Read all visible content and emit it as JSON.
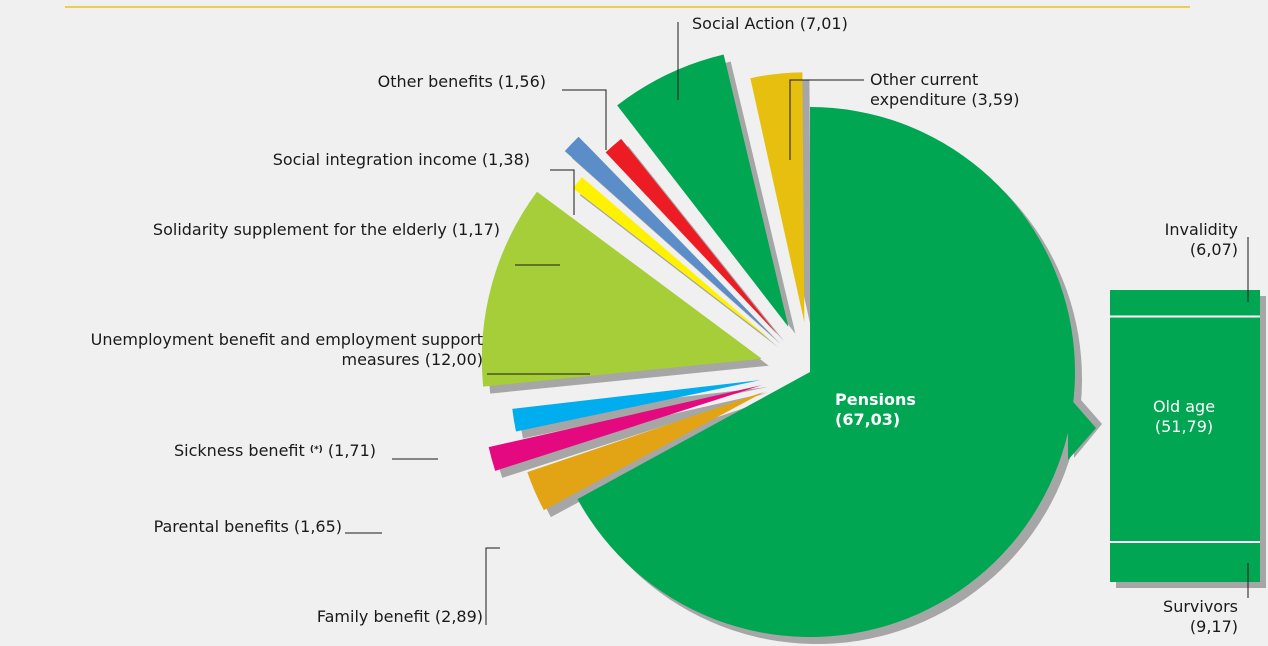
{
  "colors": {
    "background": "#f0f0f0",
    "top_rule": "#e8c21a",
    "shadow": "#a6a6a6",
    "leader": "#1a1a1a"
  },
  "chart_data": {
    "type": "pie",
    "unit": "%",
    "slices": [
      {
        "key": "pensions",
        "name": "Pensions",
        "value": 67.03,
        "value_label": "(67,03)",
        "color": "#00a651"
      },
      {
        "key": "family",
        "name": "Family benefit",
        "value": 2.89,
        "value_label": "(2,89)",
        "color": "#e2a414"
      },
      {
        "key": "parental",
        "name": "Parental benefits",
        "value": 1.65,
        "value_label": "(1,65)",
        "color": "#e5097f"
      },
      {
        "key": "sickness",
        "name": "Sickness benefit",
        "note": "(*)",
        "value": 1.71,
        "value_label": "(1,71)",
        "color": "#00adef"
      },
      {
        "key": "unemployment",
        "name": "Unemployment benefit and employment support",
        "name_line2": "measures",
        "value": 12.0,
        "value_label": "(12,00)",
        "color": "#a6ce39"
      },
      {
        "key": "solidarity",
        "name": "Solidarity supplement for the elderly",
        "value": 1.17,
        "value_label": "(1,17)",
        "color": "#fff200"
      },
      {
        "key": "integration",
        "name": "Social integration income",
        "value": 1.38,
        "value_label": "(1,38)",
        "color": "#5b8ec9"
      },
      {
        "key": "other_benefits",
        "name": "Other benefits",
        "value": 1.56,
        "value_label": "(1,56)",
        "color": "#ed1c24"
      },
      {
        "key": "social_action",
        "name": "Social Action",
        "value": 7.01,
        "value_label": "(7,01)",
        "color": "#00a651"
      },
      {
        "key": "other_current",
        "name": "Other current",
        "name_line2": "expenditure",
        "value": 3.59,
        "value_label": "(3,59)",
        "color": "#e6bf0f"
      }
    ],
    "breakdown": {
      "of": "Pensions",
      "color": "#00a651",
      "segments": [
        {
          "key": "invalidity",
          "name": "Invalidity",
          "value": 6.07,
          "value_label": "(6,07)"
        },
        {
          "key": "old_age",
          "name": "Old age",
          "value": 51.79,
          "value_label": "(51,79)"
        },
        {
          "key": "survivors",
          "name": "Survivors",
          "value": 9.17,
          "value_label": "(9,17)"
        }
      ]
    }
  }
}
